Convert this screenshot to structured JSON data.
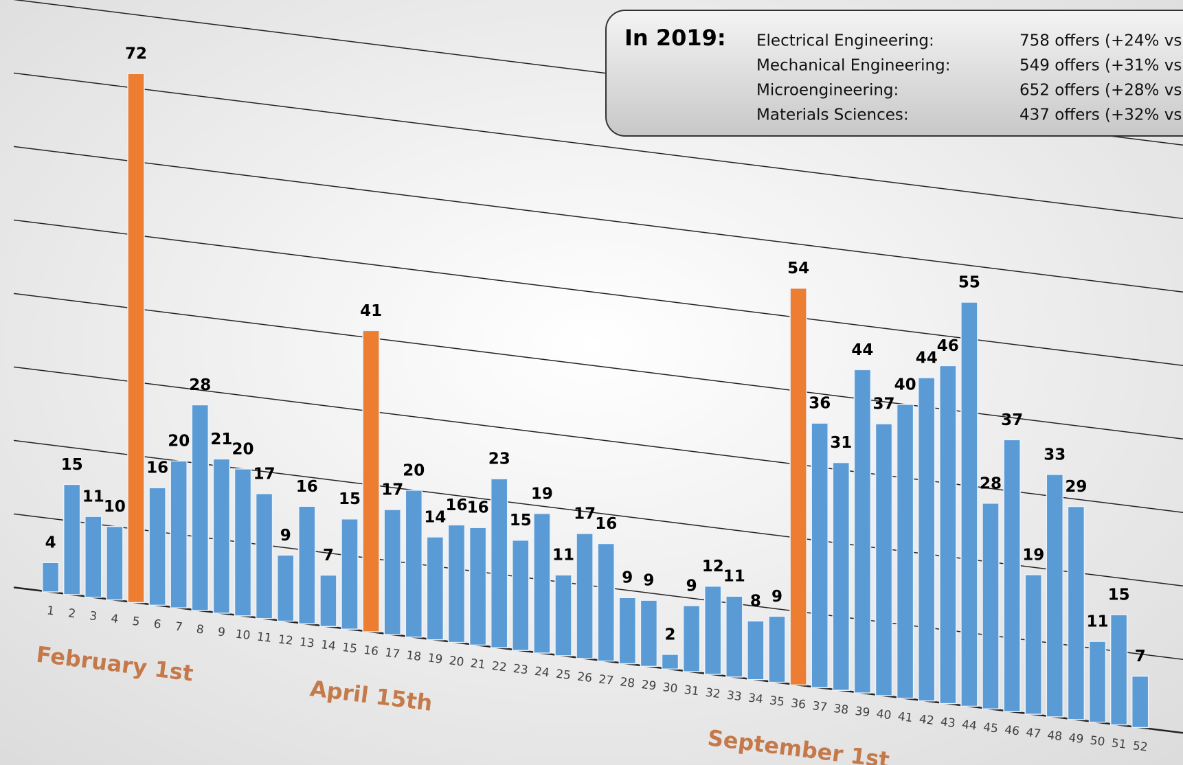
{
  "chart_data": {
    "type": "bar",
    "categories": [
      "1",
      "2",
      "3",
      "4",
      "5",
      "6",
      "7",
      "8",
      "9",
      "10",
      "11",
      "12",
      "13",
      "14",
      "15",
      "16",
      "17",
      "18",
      "19",
      "20",
      "21",
      "22",
      "23",
      "24",
      "25",
      "26",
      "27",
      "28",
      "29",
      "30",
      "31",
      "32",
      "33",
      "34",
      "35",
      "36",
      "37",
      "38",
      "39",
      "40",
      "41",
      "42",
      "43",
      "44",
      "45",
      "46",
      "47",
      "48",
      "49",
      "50",
      "51",
      "52"
    ],
    "values": [
      4,
      15,
      11,
      10,
      72,
      16,
      20,
      28,
      21,
      20,
      17,
      9,
      16,
      7,
      15,
      41,
      17,
      20,
      14,
      16,
      16,
      23,
      15,
      19,
      11,
      17,
      16,
      9,
      9,
      2,
      9,
      12,
      11,
      8,
      9,
      54,
      36,
      31,
      44,
      37,
      40,
      44,
      46,
      55,
      28,
      37,
      19,
      33,
      29,
      11,
      15,
      7
    ],
    "colors": [
      "#5b9bd5",
      "#5b9bd5",
      "#5b9bd5",
      "#5b9bd5",
      "#ed7d31",
      "#5b9bd5",
      "#5b9bd5",
      "#5b9bd5",
      "#5b9bd5",
      "#5b9bd5",
      "#5b9bd5",
      "#5b9bd5",
      "#5b9bd5",
      "#5b9bd5",
      "#5b9bd5",
      "#ed7d31",
      "#5b9bd5",
      "#5b9bd5",
      "#5b9bd5",
      "#5b9bd5",
      "#5b9bd5",
      "#5b9bd5",
      "#5b9bd5",
      "#5b9bd5",
      "#5b9bd5",
      "#5b9bd5",
      "#5b9bd5",
      "#5b9bd5",
      "#5b9bd5",
      "#5b9bd5",
      "#5b9bd5",
      "#5b9bd5",
      "#5b9bd5",
      "#5b9bd5",
      "#5b9bd5",
      "#ed7d31",
      "#5b9bd5",
      "#5b9bd5",
      "#5b9bd5",
      "#5b9bd5",
      "#5b9bd5",
      "#5b9bd5",
      "#5b9bd5",
      "#5b9bd5",
      "#5b9bd5",
      "#5b9bd5",
      "#5b9bd5",
      "#5b9bd5",
      "#5b9bd5",
      "#5b9bd5",
      "#5b9bd5",
      "#5b9bd5"
    ],
    "ylim": [
      0,
      80
    ],
    "yticks": [
      0,
      10,
      20,
      30,
      40,
      50,
      60,
      70,
      80
    ],
    "grid": true,
    "annotations": [
      {
        "text": "February 1st",
        "category": 3
      },
      {
        "text": "April 15th",
        "category": 15
      },
      {
        "text": "September 1st",
        "category": 35
      }
    ],
    "info_box": {
      "title": "In 2019:",
      "rows": [
        {
          "name": "Electrical Engineering:",
          "text": "758 offers (+24% vs"
        },
        {
          "name": "Mechanical Engineering:",
          "text": "549 offers (+31% vs"
        },
        {
          "name": "Microengineering:",
          "text": "652 offers (+28% vs"
        },
        {
          "name": "Materials Sciences:",
          "text": "437 offers (+32% vs"
        }
      ]
    }
  }
}
